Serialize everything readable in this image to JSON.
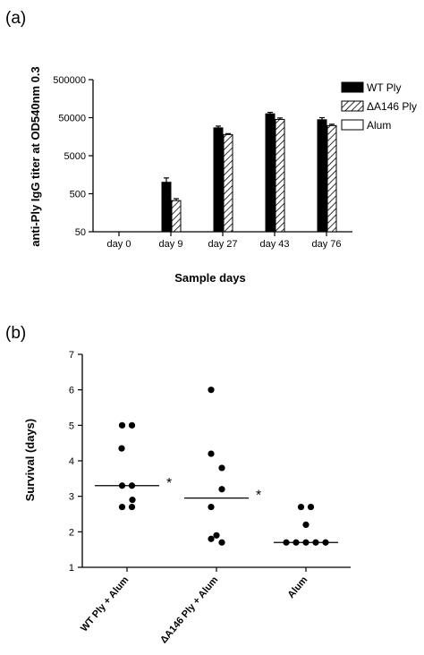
{
  "panel_a": {
    "label": "(a)",
    "chart_data": {
      "type": "bar",
      "ylabel": "anti-Ply IgG titer at OD540nm 0.3",
      "xlabel": "Sample days",
      "yscale": "log",
      "ylim": [
        50,
        500000
      ],
      "yticks": [
        50,
        500,
        5000,
        50000,
        500000
      ],
      "ytick_labels": [
        "50",
        "500",
        "5000",
        "50000",
        "500000"
      ],
      "categories": [
        "day 0",
        "day 9",
        "day 27",
        "day 43",
        "day 76"
      ],
      "series": [
        {
          "name": "WT Ply",
          "fill": "solid",
          "values": [
            null,
            1000,
            27000,
            63000,
            44000
          ],
          "error": [
            null,
            300,
            3000,
            6000,
            6000
          ]
        },
        {
          "name": "ΔA146 Ply",
          "fill": "hatched",
          "values": [
            null,
            330,
            18000,
            45000,
            31000
          ],
          "error": [
            null,
            40,
            1000,
            4000,
            2500
          ]
        },
        {
          "name": "Alum",
          "fill": "open",
          "values": [
            null,
            null,
            null,
            null,
            null
          ],
          "error": [
            null,
            null,
            null,
            null,
            null
          ]
        }
      ],
      "legend_position": "right",
      "grid": false
    }
  },
  "panel_b": {
    "label": "(b)",
    "chart_data": {
      "type": "scatter",
      "ylabel": "Survival (days)",
      "ylim": [
        1,
        7
      ],
      "yticks": [
        1,
        2,
        3,
        4,
        5,
        6,
        7
      ],
      "ytick_labels": [
        "1",
        "2",
        "3",
        "4",
        "5",
        "6",
        "7"
      ],
      "categories": [
        "WT Ply + Alum",
        "ΔA146 Ply + Alum",
        "Alum"
      ],
      "groups": [
        {
          "name": "WT Ply + Alum",
          "values": [
            5.0,
            5.0,
            4.35,
            3.3,
            3.3,
            2.7,
            2.7,
            2.9
          ],
          "median": 3.3,
          "significance": "*"
        },
        {
          "name": "ΔA146 Ply + Alum",
          "values": [
            6.0,
            4.2,
            3.8,
            3.2,
            2.7,
            1.9,
            1.7,
            1.8
          ],
          "median": 2.95,
          "significance": "*"
        },
        {
          "name": "Alum",
          "values": [
            2.7,
            2.7,
            2.2,
            1.7,
            1.7,
            1.7,
            1.7,
            1.7
          ],
          "median": 1.7,
          "significance": ""
        }
      ],
      "grid": false
    }
  }
}
